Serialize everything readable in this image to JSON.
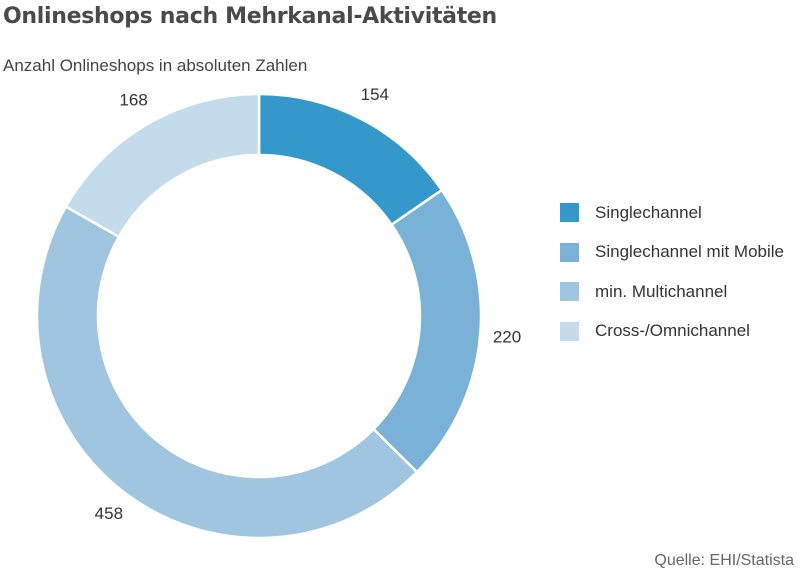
{
  "title": "Onlineshops nach Mehrkanal-Aktivitäten",
  "subtitle": "Anzahl Onlineshops in absoluten Zahlen",
  "source": "Quelle: EHI/Statista",
  "chart_data": {
    "type": "pie",
    "donut": true,
    "start_angle_deg": 0,
    "direction": "clockwise",
    "categories": [
      "Singlechannel",
      "Singlechannel mit Mobile",
      "min. Multichannel",
      "Cross-/Omnichannel"
    ],
    "values": [
      154,
      220,
      458,
      168
    ],
    "colors": [
      "#3598cb",
      "#7ab2d7",
      "#9fc5e0",
      "#c3dbea"
    ],
    "data_labels": [
      "154",
      "220",
      "458",
      "168"
    ],
    "legend_position": "right"
  }
}
